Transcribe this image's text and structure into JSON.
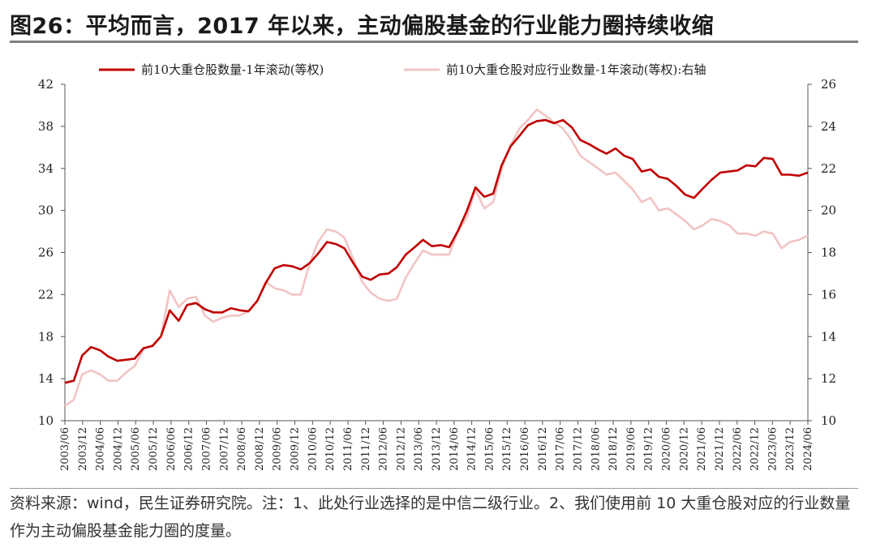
{
  "title": "图26：平均而言，2017 年以来，主动偏股基金的行业能力圈持续收缩",
  "note": "资料来源：wind，民生证券研究院。注：1、此处行业选择的是中信二级行业。2、我们使用前 10 大重仓股对应的行业数量作为主动偏股基金能力圈的度量。",
  "chart_data": {
    "type": "line",
    "title": "",
    "xlabel": "",
    "ylabel": "",
    "legend_position": "top",
    "grid": false,
    "x": [
      "2003/06",
      "2003/12",
      "2004/06",
      "2004/12",
      "2005/06",
      "2005/12",
      "2006/06",
      "2006/12",
      "2007/06",
      "2007/12",
      "2008/06",
      "2008/12",
      "2009/06",
      "2009/12",
      "2010/06",
      "2010/12",
      "2011/06",
      "2011/12",
      "2012/06",
      "2012/12",
      "2013/06",
      "2013/12",
      "2014/06",
      "2014/12",
      "2015/06",
      "2015/12",
      "2016/06",
      "2016/12",
      "2017/06",
      "2017/12",
      "2018/06",
      "2018/12",
      "2019/06",
      "2019/12",
      "2020/06",
      "2020/12",
      "2021/06",
      "2021/12",
      "2022/06",
      "2022/12",
      "2023/06",
      "2023/12",
      "2024/06"
    ],
    "left_axis": {
      "min": 10,
      "max": 42,
      "ticks": [
        "10",
        "14",
        "18",
        "22",
        "26",
        "30",
        "34",
        "38",
        "42"
      ]
    },
    "right_axis": {
      "min": 10,
      "max": 26,
      "ticks": [
        "10",
        "12",
        "14",
        "16",
        "18",
        "20",
        "22",
        "24",
        "26"
      ]
    },
    "series": [
      {
        "name": "前10大重仓股数量-1年滚动(等权)",
        "axis": "left",
        "color": "#c00000",
        "points": [
          [
            2003.5,
            13.6
          ],
          [
            2003.67,
            13.8
          ],
          [
            2003.83,
            16.2
          ],
          [
            2004.0,
            17.0
          ],
          [
            2004.17,
            16.7
          ],
          [
            2004.33,
            16.1
          ],
          [
            2004.5,
            15.7
          ],
          [
            2004.67,
            15.8
          ],
          [
            2004.83,
            15.9
          ],
          [
            2005.0,
            16.9
          ],
          [
            2005.17,
            17.1
          ],
          [
            2005.33,
            18.0
          ],
          [
            2005.5,
            20.5
          ],
          [
            2005.67,
            19.5
          ],
          [
            2005.83,
            21.0
          ],
          [
            2006.0,
            21.2
          ],
          [
            2006.17,
            20.6
          ],
          [
            2006.33,
            20.3
          ],
          [
            2006.5,
            20.3
          ],
          [
            2006.67,
            20.7
          ],
          [
            2006.83,
            20.5
          ],
          [
            2007.0,
            20.4
          ],
          [
            2007.17,
            21.4
          ],
          [
            2007.33,
            23.1
          ],
          [
            2007.5,
            24.5
          ],
          [
            2007.67,
            24.8
          ],
          [
            2007.83,
            24.7
          ],
          [
            2008.0,
            24.4
          ],
          [
            2008.17,
            25.0
          ],
          [
            2008.33,
            25.9
          ],
          [
            2008.5,
            27.0
          ],
          [
            2008.67,
            26.8
          ],
          [
            2008.83,
            26.4
          ],
          [
            2009.0,
            25.0
          ],
          [
            2009.17,
            23.7
          ],
          [
            2009.33,
            23.4
          ],
          [
            2009.5,
            23.9
          ],
          [
            2009.67,
            24.0
          ],
          [
            2009.83,
            24.6
          ],
          [
            2010.0,
            25.8
          ],
          [
            2010.17,
            26.5
          ],
          [
            2010.33,
            27.2
          ],
          [
            2010.5,
            26.6
          ],
          [
            2010.67,
            26.7
          ],
          [
            2010.83,
            26.5
          ],
          [
            2011.0,
            28.1
          ],
          [
            2011.17,
            30.0
          ],
          [
            2011.33,
            32.2
          ],
          [
            2011.5,
            31.3
          ],
          [
            2011.67,
            31.6
          ],
          [
            2011.83,
            34.3
          ],
          [
            2012.0,
            36.1
          ],
          [
            2012.17,
            37.1
          ],
          [
            2012.33,
            38.1
          ],
          [
            2012.5,
            38.5
          ],
          [
            2012.67,
            38.6
          ],
          [
            2012.83,
            38.3
          ],
          [
            2013.0,
            38.6
          ],
          [
            2013.17,
            37.9
          ],
          [
            2013.33,
            36.7
          ],
          [
            2013.5,
            36.3
          ],
          [
            2013.67,
            35.8
          ],
          [
            2013.83,
            35.4
          ],
          [
            2014.0,
            35.9
          ],
          [
            2014.17,
            35.2
          ],
          [
            2014.33,
            34.9
          ],
          [
            2014.5,
            33.7
          ],
          [
            2014.67,
            33.9
          ],
          [
            2014.83,
            33.2
          ],
          [
            2015.0,
            33.0
          ],
          [
            2015.17,
            32.3
          ],
          [
            2015.33,
            31.5
          ],
          [
            2015.5,
            31.2
          ],
          [
            2015.67,
            32.1
          ],
          [
            2015.83,
            32.9
          ],
          [
            2016.0,
            33.6
          ],
          [
            2016.17,
            33.7
          ],
          [
            2016.33,
            33.8
          ],
          [
            2016.5,
            34.3
          ],
          [
            2016.67,
            34.2
          ],
          [
            2016.83,
            35.0
          ],
          [
            2017.0,
            34.9
          ],
          [
            2017.17,
            33.4
          ],
          [
            2017.33,
            33.4
          ],
          [
            2017.5,
            33.3
          ],
          [
            2017.67,
            33.6
          ]
        ]
      },
      {
        "name": "前10大重仓股对应行业数量-1年滚动(等权):右轴",
        "axis": "right",
        "color": "#f2c4c4",
        "points": [
          [
            2003.5,
            10.7
          ],
          [
            2003.67,
            11.0
          ],
          [
            2003.83,
            12.2
          ],
          [
            2004.0,
            12.4
          ],
          [
            2004.17,
            12.2
          ],
          [
            2004.33,
            11.9
          ],
          [
            2004.5,
            11.9
          ],
          [
            2004.67,
            12.3
          ],
          [
            2004.83,
            12.6
          ],
          [
            2005.0,
            13.4
          ],
          [
            2005.17,
            13.6
          ],
          [
            2005.33,
            14.0
          ],
          [
            2005.5,
            16.2
          ],
          [
            2005.67,
            15.4
          ],
          [
            2005.83,
            15.8
          ],
          [
            2006.0,
            15.9
          ],
          [
            2006.17,
            15.0
          ],
          [
            2006.33,
            14.7
          ],
          [
            2006.5,
            14.9
          ],
          [
            2006.67,
            15.0
          ],
          [
            2006.83,
            15.0
          ],
          [
            2007.0,
            15.2
          ],
          [
            2007.17,
            15.7
          ],
          [
            2007.33,
            16.6
          ],
          [
            2007.5,
            16.3
          ],
          [
            2007.67,
            16.2
          ],
          [
            2007.83,
            16.0
          ],
          [
            2008.0,
            16.0
          ],
          [
            2008.17,
            17.5
          ],
          [
            2008.33,
            18.5
          ],
          [
            2008.5,
            19.1
          ],
          [
            2008.67,
            19.0
          ],
          [
            2008.83,
            18.7
          ],
          [
            2009.0,
            17.7
          ],
          [
            2009.17,
            16.6
          ],
          [
            2009.33,
            16.1
          ],
          [
            2009.5,
            15.8
          ],
          [
            2009.67,
            15.7
          ],
          [
            2009.83,
            15.8
          ],
          [
            2010.0,
            16.8
          ],
          [
            2010.17,
            17.5
          ],
          [
            2010.33,
            18.1
          ],
          [
            2010.5,
            17.9
          ],
          [
            2010.67,
            17.9
          ],
          [
            2010.83,
            17.9
          ],
          [
            2011.0,
            19.0
          ],
          [
            2011.17,
            19.7
          ],
          [
            2011.33,
            21.0
          ],
          [
            2011.5,
            20.1
          ],
          [
            2011.67,
            20.4
          ],
          [
            2011.83,
            22.0
          ],
          [
            2012.0,
            23.1
          ],
          [
            2012.17,
            23.9
          ],
          [
            2012.33,
            24.3
          ],
          [
            2012.5,
            24.8
          ],
          [
            2012.67,
            24.5
          ],
          [
            2012.83,
            24.2
          ],
          [
            2013.0,
            23.9
          ],
          [
            2013.17,
            23.3
          ],
          [
            2013.33,
            22.6
          ],
          [
            2013.5,
            22.3
          ],
          [
            2013.67,
            22.0
          ],
          [
            2013.83,
            21.7
          ],
          [
            2014.0,
            21.8
          ],
          [
            2014.17,
            21.4
          ],
          [
            2014.33,
            21.0
          ],
          [
            2014.5,
            20.4
          ],
          [
            2014.67,
            20.6
          ],
          [
            2014.83,
            20.0
          ],
          [
            2015.0,
            20.1
          ],
          [
            2015.17,
            19.8
          ],
          [
            2015.33,
            19.5
          ],
          [
            2015.5,
            19.1
          ],
          [
            2015.67,
            19.3
          ],
          [
            2015.83,
            19.6
          ],
          [
            2016.0,
            19.5
          ],
          [
            2016.17,
            19.3
          ],
          [
            2016.33,
            18.9
          ],
          [
            2016.5,
            18.9
          ],
          [
            2016.67,
            18.8
          ],
          [
            2016.83,
            19.0
          ],
          [
            2017.0,
            18.9
          ],
          [
            2017.17,
            18.2
          ],
          [
            2017.33,
            18.5
          ],
          [
            2017.5,
            18.6
          ],
          [
            2017.67,
            18.8
          ]
        ]
      }
    ]
  }
}
